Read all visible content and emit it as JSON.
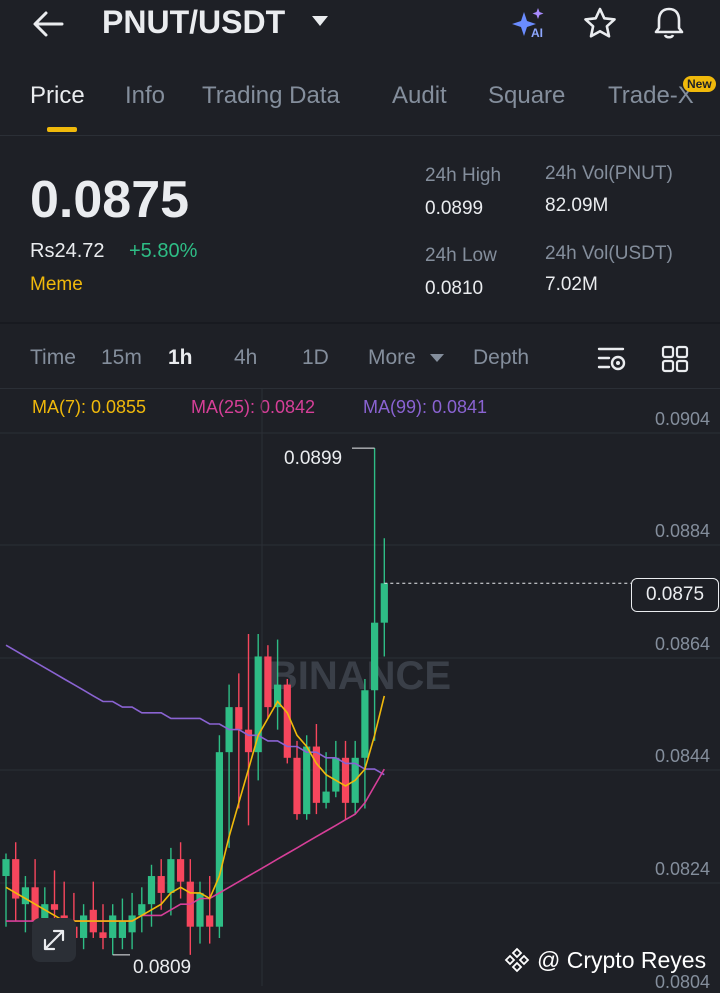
{
  "header": {
    "pair": "PNUT/USDT",
    "ai_label": "AI"
  },
  "tabs": [
    {
      "label": "Price"
    },
    {
      "label": "Info"
    },
    {
      "label": "Trading Data"
    },
    {
      "label": "Audit"
    },
    {
      "label": "Square"
    },
    {
      "label": "Trade-X"
    }
  ],
  "new_badge": "New",
  "ticker": {
    "price": "0.0875",
    "fiat": "Rs24.72",
    "change": "+5.80%",
    "tag": "Meme"
  },
  "stats": [
    {
      "label": "24h High",
      "value": "0.0899"
    },
    {
      "label": "24h Vol(PNUT)",
      "value": "82.09M"
    },
    {
      "label": "24h Low",
      "value": "0.0810"
    },
    {
      "label": "24h Vol(USDT)",
      "value": "7.02M"
    }
  ],
  "timeframes": [
    {
      "label": "Time"
    },
    {
      "label": "15m"
    },
    {
      "label": "1h"
    },
    {
      "label": "4h"
    },
    {
      "label": "1D"
    },
    {
      "label": "More"
    },
    {
      "label": "Depth"
    }
  ],
  "ma_legend": [
    {
      "label": "MA(7): 0.0855",
      "color": "#f0b90b"
    },
    {
      "label": "MA(25): 0.0842",
      "color": "#d63f98"
    },
    {
      "label": "MA(99): 0.0841",
      "color": "#8a63d2"
    }
  ],
  "chart_data": {
    "type": "candlestick",
    "timeframe": "1h",
    "y_ticks": [
      "0.0904",
      "0.0884",
      "0.0864",
      "0.0844",
      "0.0824",
      "0.0804"
    ],
    "ylim": [
      0.0804,
      0.0904
    ],
    "last_price": "0.0875",
    "high_label": "0.0899",
    "low_label": "0.0809",
    "candles": [
      {
        "o": 0.0823,
        "h": 0.0827,
        "l": 0.0814,
        "c": 0.0826
      },
      {
        "o": 0.0826,
        "h": 0.0829,
        "l": 0.0815,
        "c": 0.0819
      },
      {
        "o": 0.0818,
        "h": 0.0823,
        "l": 0.0813,
        "c": 0.0821
      },
      {
        "o": 0.0821,
        "h": 0.0826,
        "l": 0.0812,
        "c": 0.0815
      },
      {
        "o": 0.0815,
        "h": 0.0821,
        "l": 0.0811,
        "c": 0.0818
      },
      {
        "o": 0.0818,
        "h": 0.0824,
        "l": 0.0813,
        "c": 0.0817
      },
      {
        "o": 0.0816,
        "h": 0.0822,
        "l": 0.0811,
        "c": 0.0814
      },
      {
        "o": 0.0814,
        "h": 0.082,
        "l": 0.0811,
        "c": 0.0812
      },
      {
        "o": 0.0812,
        "h": 0.0818,
        "l": 0.081,
        "c": 0.0816
      },
      {
        "o": 0.0817,
        "h": 0.0822,
        "l": 0.0812,
        "c": 0.0813
      },
      {
        "o": 0.0813,
        "h": 0.0818,
        "l": 0.081,
        "c": 0.0812
      },
      {
        "o": 0.0812,
        "h": 0.0818,
        "l": 0.0809,
        "c": 0.0816
      },
      {
        "o": 0.0812,
        "h": 0.0819,
        "l": 0.081,
        "c": 0.0815
      },
      {
        "o": 0.0813,
        "h": 0.082,
        "l": 0.081,
        "c": 0.0816
      },
      {
        "o": 0.0816,
        "h": 0.0821,
        "l": 0.0813,
        "c": 0.0818
      },
      {
        "o": 0.0818,
        "h": 0.0825,
        "l": 0.0814,
        "c": 0.0823
      },
      {
        "o": 0.0823,
        "h": 0.0826,
        "l": 0.0817,
        "c": 0.082
      },
      {
        "o": 0.082,
        "h": 0.0828,
        "l": 0.0816,
        "c": 0.0826
      },
      {
        "o": 0.0826,
        "h": 0.0829,
        "l": 0.0819,
        "c": 0.0822
      },
      {
        "o": 0.0822,
        "h": 0.0826,
        "l": 0.0809,
        "c": 0.0814
      },
      {
        "o": 0.0814,
        "h": 0.0822,
        "l": 0.0811,
        "c": 0.082
      },
      {
        "o": 0.0816,
        "h": 0.0823,
        "l": 0.0811,
        "c": 0.0814
      },
      {
        "o": 0.0814,
        "h": 0.0848,
        "l": 0.0812,
        "c": 0.0845
      },
      {
        "o": 0.0845,
        "h": 0.0857,
        "l": 0.0828,
        "c": 0.0853
      },
      {
        "o": 0.0853,
        "h": 0.0859,
        "l": 0.0835,
        "c": 0.0849
      },
      {
        "o": 0.0849,
        "h": 0.0866,
        "l": 0.0832,
        "c": 0.0845
      },
      {
        "o": 0.0845,
        "h": 0.0866,
        "l": 0.084,
        "c": 0.0862
      },
      {
        "o": 0.0862,
        "h": 0.0864,
        "l": 0.0851,
        "c": 0.0853
      },
      {
        "o": 0.0853,
        "h": 0.0865,
        "l": 0.0849,
        "c": 0.0857
      },
      {
        "o": 0.0857,
        "h": 0.0858,
        "l": 0.0843,
        "c": 0.0844
      },
      {
        "o": 0.0844,
        "h": 0.0847,
        "l": 0.0833,
        "c": 0.0834
      },
      {
        "o": 0.0834,
        "h": 0.0848,
        "l": 0.0833,
        "c": 0.0846
      },
      {
        "o": 0.0846,
        "h": 0.085,
        "l": 0.0834,
        "c": 0.0836
      },
      {
        "o": 0.0836,
        "h": 0.0845,
        "l": 0.0835,
        "c": 0.0838
      },
      {
        "o": 0.0838,
        "h": 0.0847,
        "l": 0.0837,
        "c": 0.0844
      },
      {
        "o": 0.0844,
        "h": 0.0847,
        "l": 0.0833,
        "c": 0.0836
      },
      {
        "o": 0.0836,
        "h": 0.0847,
        "l": 0.0834,
        "c": 0.0844
      },
      {
        "o": 0.0844,
        "h": 0.0858,
        "l": 0.0835,
        "c": 0.0856
      },
      {
        "o": 0.0856,
        "h": 0.0899,
        "l": 0.0847,
        "c": 0.0868
      },
      {
        "o": 0.0868,
        "h": 0.0883,
        "l": 0.0862,
        "c": 0.0875
      }
    ],
    "ma7": [
      0.0821,
      0.082,
      0.0819,
      0.0818,
      0.0817,
      0.0816,
      0.0815,
      0.0815,
      0.0815,
      0.0815,
      0.0815,
      0.0815,
      0.0815,
      0.0815,
      0.0816,
      0.0817,
      0.0818,
      0.082,
      0.0821,
      0.082,
      0.082,
      0.0819,
      0.0823,
      0.083,
      0.0836,
      0.0842,
      0.0848,
      0.0851,
      0.0854,
      0.0852,
      0.0848,
      0.0846,
      0.0843,
      0.0841,
      0.084,
      0.0839,
      0.084,
      0.0842,
      0.0848,
      0.0855
    ],
    "ma25": [
      0.0815,
      0.0815,
      0.0815,
      0.0815,
      0.0815,
      0.0815,
      0.0815,
      0.0815,
      0.0815,
      0.0815,
      0.0815,
      0.0815,
      0.0815,
      0.0815,
      0.0816,
      0.0816,
      0.0816,
      0.0817,
      0.0818,
      0.0818,
      0.0819,
      0.0819,
      0.082,
      0.0821,
      0.0822,
      0.0823,
      0.0824,
      0.0825,
      0.0826,
      0.0827,
      0.0828,
      0.0829,
      0.083,
      0.0831,
      0.0832,
      0.0833,
      0.0834,
      0.0836,
      0.0839,
      0.0842
    ],
    "ma99": [
      0.0864,
      0.0863,
      0.0862,
      0.0861,
      0.086,
      0.0859,
      0.0858,
      0.0857,
      0.0856,
      0.0855,
      0.0854,
      0.0854,
      0.0853,
      0.0853,
      0.0852,
      0.0852,
      0.0852,
      0.0851,
      0.0851,
      0.0851,
      0.0851,
      0.085,
      0.085,
      0.0849,
      0.0849,
      0.0848,
      0.0848,
      0.0847,
      0.0847,
      0.0846,
      0.0846,
      0.0845,
      0.0845,
      0.0844,
      0.0844,
      0.0843,
      0.0843,
      0.0842,
      0.0842,
      0.0841
    ],
    "watermark": "BINANCE"
  },
  "colors": {
    "up": "#2ebd85",
    "down": "#f6465d",
    "accent": "#f0b90b"
  },
  "footer": {
    "watermark": "@ Crypto Reyes"
  },
  "icons": [
    "back-arrow-icon",
    "dropdown-caret-icon",
    "ai-sparkle-icon",
    "star-icon",
    "bell-icon",
    "chart-settings-icon",
    "grid-layout-icon",
    "expand-icon",
    "binance-logo-icon"
  ]
}
